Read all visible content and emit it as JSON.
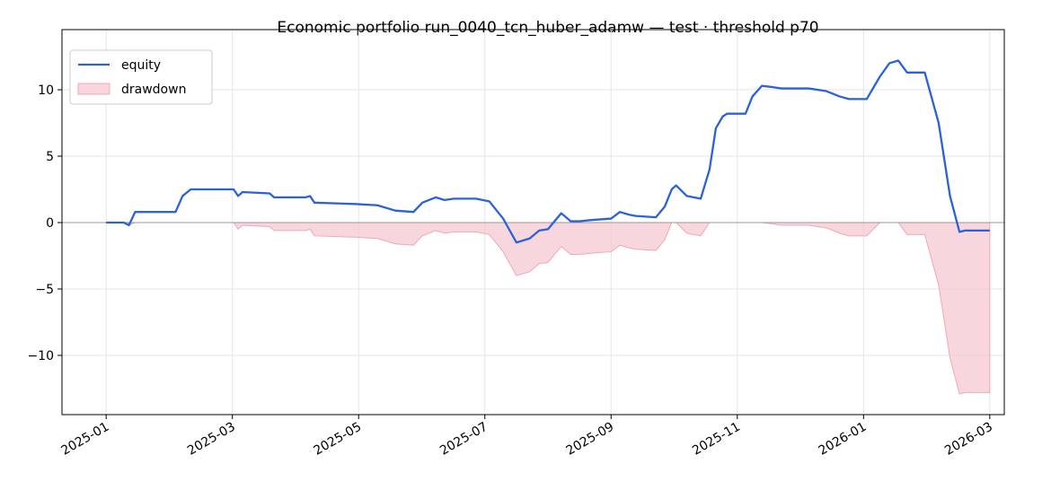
{
  "chart_data": {
    "type": "line",
    "title": "Economic portfolio run_0040_tcn_huber_adamw — test · threshold p70",
    "x": [
      0,
      0.28,
      0.36,
      0.46,
      1.1,
      1.21,
      1.34,
      2.02,
      2.09,
      2.16,
      2.59,
      2.66,
      3.16,
      3.23,
      3.3,
      3.94,
      4.3,
      4.58,
      4.87,
      5.01,
      5.22,
      5.36,
      5.51,
      5.86,
      6.07,
      6.29,
      6.5,
      6.71,
      6.86,
      7.0,
      7.21,
      7.36,
      7.5,
      7.71,
      8.0,
      8.14,
      8.28,
      8.39,
      8.71,
      8.85,
      8.96,
      9.03,
      9.2,
      9.42,
      9.56,
      9.66,
      9.77,
      9.84,
      10.13,
      10.24,
      10.39,
      10.56,
      10.7,
      11.13,
      11.41,
      11.62,
      11.77,
      12.05,
      12.26,
      12.41,
      12.55,
      12.69,
      12.97,
      13.19,
      13.37,
      13.52,
      13.61,
      14.0
    ],
    "series": [
      {
        "name": "equity",
        "color": "#2b62d9",
        "style": "line",
        "values": [
          0,
          0,
          -0.2,
          0.8,
          0.8,
          2.0,
          2.5,
          2.5,
          2.0,
          2.3,
          2.2,
          1.9,
          1.9,
          2.0,
          1.5,
          1.4,
          1.3,
          0.9,
          0.8,
          1.5,
          1.9,
          1.7,
          1.8,
          1.8,
          1.6,
          0.3,
          -1.5,
          -1.2,
          -0.6,
          -0.5,
          0.7,
          0.1,
          0.1,
          0.2,
          0.3,
          0.8,
          0.6,
          0.5,
          0.4,
          1.2,
          2.5,
          2.8,
          2.0,
          1.8,
          4.0,
          7.1,
          8.0,
          8.2,
          8.2,
          9.5,
          10.3,
          10.2,
          10.1,
          10.1,
          9.9,
          9.5,
          9.3,
          9.3,
          11.0,
          12.0,
          12.2,
          11.3,
          11.3,
          7.5,
          2.0,
          -0.7,
          -0.6,
          -0.6
        ]
      },
      {
        "name": "drawdown",
        "color": "#f5c4cf",
        "style": "area",
        "values": [
          0,
          0,
          -0.2,
          0,
          0,
          0,
          0,
          0,
          -0.5,
          -0.2,
          -0.3,
          -0.6,
          -0.6,
          -0.5,
          -1.0,
          -1.1,
          -1.2,
          -1.6,
          -1.7,
          -1.0,
          -0.6,
          -0.8,
          -0.7,
          -0.7,
          -0.9,
          -2.2,
          -4.0,
          -3.7,
          -3.1,
          -3.0,
          -1.8,
          -2.4,
          -2.4,
          -2.3,
          -2.2,
          -1.7,
          -1.9,
          -2.0,
          -2.1,
          -1.3,
          0,
          0,
          -0.8,
          -1.0,
          0,
          0,
          0,
          0,
          0,
          0,
          0,
          -0.1,
          -0.2,
          -0.2,
          -0.4,
          -0.8,
          -1.0,
          -1.0,
          0,
          0,
          0,
          -0.9,
          -0.9,
          -4.7,
          -10.2,
          -12.9,
          -12.8,
          -12.8
        ]
      }
    ],
    "xlim": [
      -0.7,
      14.23
    ],
    "xticks": [
      {
        "value": 0,
        "label": "2025-01"
      },
      {
        "value": 2,
        "label": "2025-03"
      },
      {
        "value": 4,
        "label": "2025-05"
      },
      {
        "value": 6,
        "label": "2025-07"
      },
      {
        "value": 8,
        "label": "2025-09"
      },
      {
        "value": 10,
        "label": "2025-11"
      },
      {
        "value": 12,
        "label": "2026-01"
      },
      {
        "value": 14,
        "label": "2026-03"
      }
    ],
    "ylim": [
      -14.46,
      14.53
    ],
    "yticks": [
      {
        "value": -10,
        "label": "−10"
      },
      {
        "value": -5,
        "label": "−5"
      },
      0,
      5,
      10
    ],
    "hline": 0,
    "grid": true,
    "legend": "upper left"
  }
}
